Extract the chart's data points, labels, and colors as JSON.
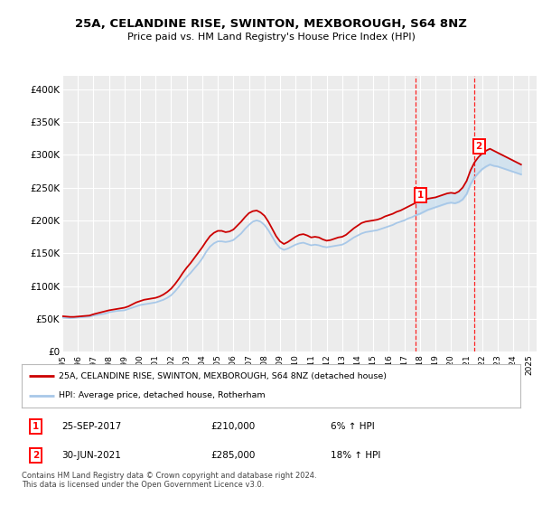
{
  "title": "25A, CELANDINE RISE, SWINTON, MEXBOROUGH, S64 8NZ",
  "subtitle": "Price paid vs. HM Land Registry's House Price Index (HPI)",
  "ylim": [
    0,
    420000
  ],
  "yticks": [
    0,
    50000,
    100000,
    150000,
    200000,
    250000,
    300000,
    350000,
    400000
  ],
  "ytick_labels": [
    "£0",
    "£50K",
    "£100K",
    "£150K",
    "£200K",
    "£250K",
    "£300K",
    "£350K",
    "£400K"
  ],
  "background_color": "#ffffff",
  "plot_bg_color": "#ececec",
  "grid_color": "#ffffff",
  "hpi_color": "#a8c8e8",
  "price_color": "#cc0000",
  "fill_color": "#c8dff0",
  "marker1_date_x": 2017.73,
  "marker1_value": 210000,
  "marker2_date_x": 2021.49,
  "marker2_value": 285000,
  "legend_line1": "25A, CELANDINE RISE, SWINTON, MEXBOROUGH, S64 8NZ (detached house)",
  "legend_line2": "HPI: Average price, detached house, Rotherham",
  "table_row1": [
    "1",
    "25-SEP-2017",
    "£210,000",
    "6% ↑ HPI"
  ],
  "table_row2": [
    "2",
    "30-JUN-2021",
    "£285,000",
    "18% ↑ HPI"
  ],
  "footer": "Contains HM Land Registry data © Crown copyright and database right 2024.\nThis data is licensed under the Open Government Licence v3.0.",
  "years": [
    1995.0,
    1995.25,
    1995.5,
    1995.75,
    1996.0,
    1996.25,
    1996.5,
    1996.75,
    1997.0,
    1997.25,
    1997.5,
    1997.75,
    1998.0,
    1998.25,
    1998.5,
    1998.75,
    1999.0,
    1999.25,
    1999.5,
    1999.75,
    2000.0,
    2000.25,
    2000.5,
    2000.75,
    2001.0,
    2001.25,
    2001.5,
    2001.75,
    2002.0,
    2002.25,
    2002.5,
    2002.75,
    2003.0,
    2003.25,
    2003.5,
    2003.75,
    2004.0,
    2004.25,
    2004.5,
    2004.75,
    2005.0,
    2005.25,
    2005.5,
    2005.75,
    2006.0,
    2006.25,
    2006.5,
    2006.75,
    2007.0,
    2007.25,
    2007.5,
    2007.75,
    2008.0,
    2008.25,
    2008.5,
    2008.75,
    2009.0,
    2009.25,
    2009.5,
    2009.75,
    2010.0,
    2010.25,
    2010.5,
    2010.75,
    2011.0,
    2011.25,
    2011.5,
    2011.75,
    2012.0,
    2012.25,
    2012.5,
    2012.75,
    2013.0,
    2013.25,
    2013.5,
    2013.75,
    2014.0,
    2014.25,
    2014.5,
    2014.75,
    2015.0,
    2015.25,
    2015.5,
    2015.75,
    2016.0,
    2016.25,
    2016.5,
    2016.75,
    2017.0,
    2017.25,
    2017.5,
    2017.75,
    2018.0,
    2018.25,
    2018.5,
    2018.75,
    2019.0,
    2019.25,
    2019.5,
    2019.75,
    2020.0,
    2020.25,
    2020.5,
    2020.75,
    2021.0,
    2021.25,
    2021.5,
    2021.75,
    2022.0,
    2022.25,
    2022.5,
    2022.75,
    2023.0,
    2023.25,
    2023.5,
    2023.75,
    2024.0,
    2024.25,
    2024.5
  ],
  "hpi_values": [
    52000,
    51500,
    51000,
    51500,
    52000,
    52500,
    53000,
    53500,
    55000,
    56000,
    57000,
    58000,
    60000,
    61000,
    62000,
    62500,
    63000,
    65000,
    67000,
    69000,
    71000,
    72000,
    73000,
    74000,
    75000,
    77000,
    79000,
    82000,
    86000,
    92000,
    99000,
    107000,
    114000,
    120000,
    127000,
    134000,
    142000,
    152000,
    160000,
    165000,
    168000,
    168000,
    167000,
    168000,
    170000,
    175000,
    180000,
    187000,
    193000,
    198000,
    200000,
    198000,
    193000,
    185000,
    175000,
    165000,
    158000,
    155000,
    157000,
    160000,
    163000,
    165000,
    166000,
    164000,
    162000,
    163000,
    162000,
    160000,
    159000,
    160000,
    161000,
    162000,
    163000,
    166000,
    170000,
    174000,
    177000,
    180000,
    182000,
    183000,
    184000,
    185000,
    187000,
    189000,
    191000,
    193000,
    196000,
    198000,
    200000,
    203000,
    205000,
    208000,
    210000,
    213000,
    216000,
    218000,
    220000,
    222000,
    224000,
    226000,
    227000,
    226000,
    228000,
    232000,
    240000,
    255000,
    265000,
    272000,
    278000,
    282000,
    285000,
    283000,
    282000,
    280000,
    278000,
    276000,
    274000,
    272000,
    270000
  ],
  "price_values": [
    54000,
    53500,
    53000,
    53000,
    53500,
    54000,
    54500,
    55000,
    57000,
    58500,
    60000,
    61500,
    63000,
    64000,
    65000,
    66000,
    67000,
    69000,
    72000,
    75000,
    77000,
    79000,
    80000,
    81000,
    82000,
    84000,
    87000,
    91000,
    96000,
    103000,
    111000,
    120000,
    128000,
    135000,
    143000,
    151000,
    159000,
    168000,
    176000,
    181000,
    184000,
    184000,
    182000,
    183000,
    186000,
    192000,
    198000,
    205000,
    211000,
    214000,
    215000,
    212000,
    207000,
    198000,
    187000,
    176000,
    168000,
    164000,
    167000,
    171000,
    175000,
    178000,
    179000,
    177000,
    174000,
    175000,
    174000,
    171000,
    169000,
    170000,
    172000,
    174000,
    175000,
    178000,
    183000,
    188000,
    192000,
    196000,
    198000,
    199000,
    200000,
    201000,
    203000,
    206000,
    208000,
    210000,
    213000,
    215000,
    218000,
    221000,
    224000,
    227000,
    229000,
    231000,
    233000,
    234000,
    235000,
    237000,
    239000,
    241000,
    242000,
    241000,
    244000,
    250000,
    260000,
    276000,
    288000,
    296000,
    302000,
    306000,
    309000,
    306000,
    303000,
    300000,
    297000,
    294000,
    291000,
    288000,
    285000
  ],
  "fill_from": 2017.73,
  "fill_to": 2025.0,
  "xlim": [
    1995.0,
    2025.5
  ],
  "xticks": [
    1995,
    1996,
    1997,
    1998,
    1999,
    2000,
    2001,
    2002,
    2003,
    2004,
    2005,
    2006,
    2007,
    2008,
    2009,
    2010,
    2011,
    2012,
    2013,
    2014,
    2015,
    2016,
    2017,
    2018,
    2019,
    2020,
    2021,
    2022,
    2023,
    2024,
    2025
  ]
}
